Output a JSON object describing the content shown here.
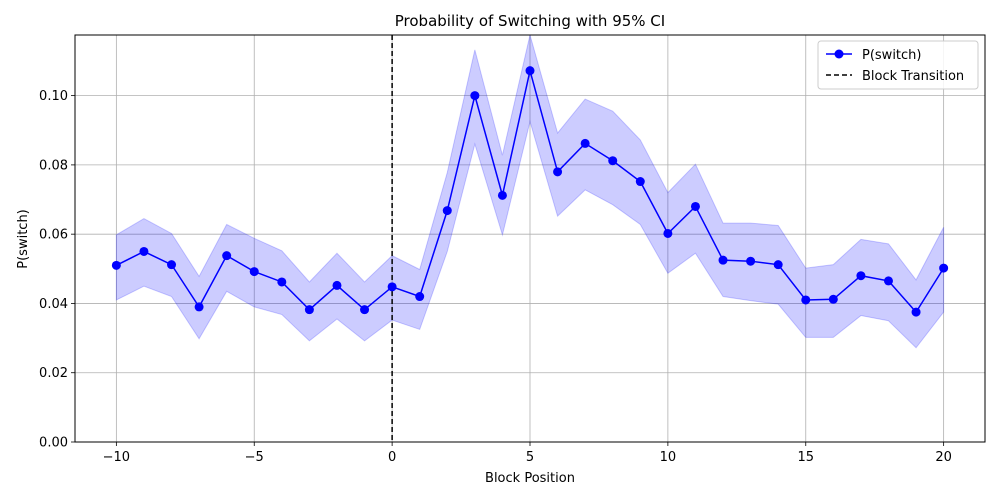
{
  "chart_data": {
    "type": "line",
    "title": "Probability of Switching with 95% CI",
    "xlabel": "Block Position",
    "ylabel": "P(switch)",
    "xlim": [
      -11.5,
      21.5
    ],
    "ylim": [
      0,
      0.1175
    ],
    "grid": true,
    "legend_position": "top-right",
    "x_ticks": [
      -10,
      -5,
      0,
      5,
      10,
      15,
      20
    ],
    "x_tick_labels": [
      "−10",
      "−5",
      "0",
      "5",
      "10",
      "15",
      "20"
    ],
    "y_ticks": [
      0.0,
      0.02,
      0.04,
      0.06,
      0.08,
      0.1
    ],
    "y_tick_labels": [
      "0.00",
      "0.02",
      "0.04",
      "0.06",
      "0.08",
      "0.10"
    ],
    "series": [
      {
        "name": "P(switch)",
        "color": "#0000ff",
        "x": [
          -10,
          -9,
          -8,
          -7,
          -6,
          -5,
          -4,
          -3,
          -2,
          -1,
          0,
          1,
          2,
          3,
          4,
          5,
          6,
          7,
          8,
          9,
          10,
          11,
          12,
          13,
          14,
          15,
          16,
          17,
          18,
          19,
          20
        ],
        "y": [
          0.051,
          0.055,
          0.0512,
          0.039,
          0.0538,
          0.0492,
          0.0462,
          0.0382,
          0.0452,
          0.0382,
          0.0448,
          0.042,
          0.0668,
          0.1,
          0.0712,
          0.1072,
          0.078,
          0.0862,
          0.0812,
          0.0752,
          0.0602,
          0.068,
          0.0525,
          0.0522,
          0.0512,
          0.041,
          0.0412,
          0.048,
          0.0465,
          0.0375,
          0.0502
        ],
        "ci_lower": [
          0.041,
          0.045,
          0.042,
          0.0298,
          0.0435,
          0.039,
          0.0368,
          0.0292,
          0.0355,
          0.0292,
          0.0352,
          0.0325,
          0.055,
          0.086,
          0.0598,
          0.0925,
          0.0652,
          0.0728,
          0.0685,
          0.0628,
          0.0487,
          0.0545,
          0.042,
          0.0408,
          0.0398,
          0.0302,
          0.0302,
          0.0365,
          0.035,
          0.0272,
          0.0375
        ],
        "ci_upper": [
          0.0598,
          0.0645,
          0.0602,
          0.0478,
          0.0628,
          0.0588,
          0.0552,
          0.0462,
          0.0545,
          0.0462,
          0.0538,
          0.0498,
          0.0778,
          0.1132,
          0.0828,
          0.1185,
          0.0892,
          0.099,
          0.0955,
          0.0872,
          0.072,
          0.0802,
          0.0632,
          0.0632,
          0.0625,
          0.0502,
          0.0512,
          0.0585,
          0.0572,
          0.0468,
          0.062
        ]
      }
    ],
    "vline": {
      "x": 0,
      "name": "Block Transition",
      "color": "#000000",
      "style": "dashed"
    },
    "ci_fill_color": "#0000ff"
  }
}
